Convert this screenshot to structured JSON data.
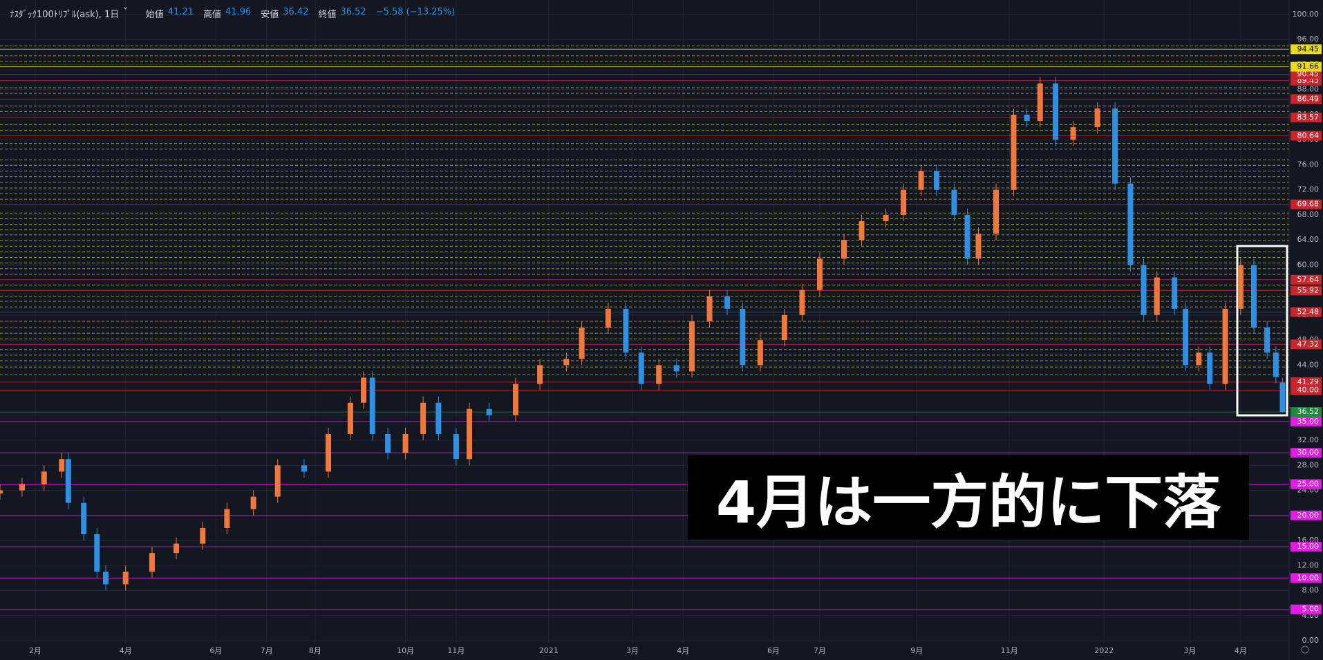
{
  "chart_data": {
    "type": "candlestick",
    "symbol": "ﾅｽﾀﾞｯｸ100ﾄﾘﾌﾟﾙ(ask), 1日",
    "open_label": "始値",
    "high_label": "高値",
    "low_label": "安値",
    "close_label": "終値",
    "change": "−5.58 (−13.25%)",
    "annotation": "4月は一方的に下落",
    "up_color": "#f0783c",
    "down_color": "#2f8fe0",
    "x": [
      0,
      10,
      20,
      28,
      31,
      38,
      44,
      48,
      57,
      69,
      80,
      92,
      103,
      115,
      126,
      138,
      149,
      159,
      165,
      169,
      176,
      184,
      192,
      199,
      207,
      213,
      222,
      234,
      245,
      257,
      264,
      276,
      284,
      291,
      299,
      307,
      314,
      322,
      330,
      337,
      345,
      356,
      364,
      372,
      383,
      391,
      402,
      410,
      418,
      425,
      433,
      439,
      444,
      452,
      460,
      466,
      472,
      479,
      487,
      498,
      506,
      513,
      519,
      525,
      533,
      538,
      544,
      549,
      556,
      563,
      569,
      575,
      579,
      582
    ],
    "open": [
      23.5,
      24,
      25,
      27,
      29,
      22,
      17,
      11,
      9,
      11,
      14,
      15.5,
      18,
      21,
      23,
      28,
      27,
      33,
      38,
      42,
      33,
      30,
      33,
      38,
      33,
      29,
      37,
      36,
      41,
      44,
      45,
      50,
      53,
      46,
      41,
      44,
      43,
      51,
      55,
      53,
      44,
      48,
      52,
      56,
      61,
      64,
      67,
      68,
      72,
      75,
      72,
      68,
      61,
      65,
      72,
      84,
      83,
      89,
      80,
      82,
      85,
      73,
      60,
      52,
      58,
      53,
      44,
      46,
      41,
      53,
      60,
      50,
      46,
      41.21
    ],
    "high": [
      25,
      26,
      28,
      30,
      30,
      23,
      18,
      12,
      12,
      15,
      16.5,
      19,
      22,
      24,
      29,
      29,
      34,
      39,
      43,
      43,
      34,
      34,
      39,
      39,
      34,
      38,
      38,
      42,
      45,
      46,
      51,
      54,
      54,
      47,
      45,
      45,
      52,
      56,
      56,
      54,
      49,
      53,
      57,
      62,
      65,
      68,
      69,
      73,
      76,
      76,
      73,
      69,
      66,
      73,
      85,
      85,
      90,
      90,
      83,
      86,
      86,
      74,
      61,
      59,
      59,
      54,
      47,
      47,
      54,
      61,
      61,
      51,
      47,
      41.96
    ],
    "low": [
      22.5,
      23,
      24,
      26,
      21,
      16,
      10,
      8,
      8,
      10,
      13,
      14.5,
      17,
      20,
      22,
      26,
      26,
      32,
      37,
      32,
      29,
      29,
      32,
      32,
      28,
      28,
      35,
      35,
      40,
      43,
      44,
      49,
      45,
      40,
      40,
      42,
      42,
      50,
      52,
      43,
      43,
      47,
      51,
      55,
      60,
      63,
      66,
      67,
      71,
      71,
      67,
      60,
      60,
      64,
      71,
      82,
      82,
      79,
      79,
      81,
      72,
      59,
      51,
      51,
      52,
      43,
      43,
      40,
      40,
      52,
      49,
      45,
      41.1,
      36.42
    ],
    "close": [
      24,
      25,
      27,
      29,
      22,
      17,
      11,
      9,
      11,
      14,
      15.5,
      18,
      21,
      23,
      28,
      27,
      33,
      38,
      42,
      33,
      30,
      33,
      38,
      33,
      29,
      37,
      36,
      41,
      44,
      45,
      50,
      53,
      46,
      41,
      44,
      43,
      51,
      55,
      53,
      44,
      48,
      52,
      56,
      61,
      64,
      67,
      68,
      72,
      75,
      72,
      68,
      61,
      65,
      72,
      84,
      83,
      89,
      80,
      82,
      85,
      73,
      60,
      52,
      58,
      53,
      44,
      46,
      41,
      53,
      60,
      50,
      46,
      42.1,
      36.52
    ],
    "xlim": [
      0,
      585
    ],
    "xticks": [
      {
        "value": 16,
        "label": "2月"
      },
      {
        "value": 57,
        "label": "4月"
      },
      {
        "value": 98,
        "label": "6月"
      },
      {
        "value": 121,
        "label": "7月"
      },
      {
        "value": 143,
        "label": "8月"
      },
      {
        "value": 184,
        "label": "10月"
      },
      {
        "value": 207,
        "label": "11月"
      },
      {
        "value": 249,
        "label": "2021"
      },
      {
        "value": 287,
        "label": "3月"
      },
      {
        "value": 310,
        "label": "4月"
      },
      {
        "value": 351,
        "label": "6月"
      },
      {
        "value": 372,
        "label": "7月"
      },
      {
        "value": 416,
        "label": "9月"
      },
      {
        "value": 458,
        "label": "11月"
      },
      {
        "value": 501,
        "label": "2022"
      },
      {
        "value": 540,
        "label": "3月"
      },
      {
        "value": 563,
        "label": "4月"
      }
    ],
    "ylim": [
      0,
      100
    ],
    "yticks": [
      {
        "value": 0,
        "label": "0.00"
      },
      {
        "value": 4,
        "label": "4.00"
      },
      {
        "value": 8,
        "label": "8.00"
      },
      {
        "value": 12,
        "label": "12.00"
      },
      {
        "value": 16,
        "label": "16.00"
      },
      {
        "value": 20,
        "label": "20.00"
      },
      {
        "value": 24,
        "label": "24.00"
      },
      {
        "value": 28,
        "label": "28.00"
      },
      {
        "value": 32,
        "label": "32.00"
      },
      {
        "value": 36,
        "label": "36.00"
      },
      {
        "value": 40,
        "label": "40.00"
      },
      {
        "value": 44,
        "label": "44.00"
      },
      {
        "value": 48,
        "label": "48.00"
      },
      {
        "value": 52,
        "label": "52.00"
      },
      {
        "value": 56,
        "label": "56.00"
      },
      {
        "value": 60,
        "label": "60.00"
      },
      {
        "value": 64,
        "label": "64.00"
      },
      {
        "value": 68,
        "label": "68.00"
      },
      {
        "value": 72,
        "label": "72.00"
      },
      {
        "value": 76,
        "label": "76.00"
      },
      {
        "value": 80,
        "label": "80.00"
      },
      {
        "value": 84,
        "label": "84.00"
      },
      {
        "value": 88,
        "label": "88.00"
      },
      {
        "value": 92,
        "label": "92.00"
      },
      {
        "value": 96,
        "label": "96.00"
      },
      {
        "value": 100,
        "label": "100.00"
      }
    ],
    "grid": true,
    "dashed_levels": [
      42.5,
      43.7,
      44.7,
      45.6,
      46.5,
      48.2,
      49.1,
      50.0,
      51.0,
      53.3,
      54.2,
      55.0,
      56.8,
      58.5,
      59.4,
      60.3,
      61.2,
      62.1,
      63.0,
      63.9,
      64.8,
      65.6,
      66.5,
      67.4,
      68.3,
      70.5,
      71.4,
      72.3,
      73.2,
      74.1,
      75.0,
      75.9,
      76.8,
      78.5,
      79.4,
      81.5,
      82.4,
      84.5,
      85.4,
      87.4,
      88.3,
      92.5,
      93.4,
      95.0
    ],
    "dashed_color": "#c9b52a",
    "levels": [
      {
        "value": 5,
        "label": "5.00",
        "color": "#e31ce3"
      },
      {
        "value": 10,
        "label": "10.00",
        "color": "#e31ce3"
      },
      {
        "value": 15,
        "label": "15.00",
        "color": "#e31ce3"
      },
      {
        "value": 20,
        "label": "20.00",
        "color": "#e31ce3"
      },
      {
        "value": 25,
        "label": "25.00",
        "color": "#e31ce3"
      },
      {
        "value": 30,
        "label": "30.00",
        "color": "#e31ce3"
      },
      {
        "value": 35,
        "label": "35.00",
        "color": "#e31ce3"
      },
      {
        "value": 36.52,
        "color": "#1f8a3c"
      },
      {
        "value": 40,
        "label": "40.00",
        "color": "#c8262c"
      },
      {
        "value": 41.29,
        "color": "#c8262c"
      },
      {
        "value": 47.32,
        "color": "#c8262c"
      },
      {
        "value": 52.48,
        "color": "#c8262c"
      },
      {
        "value": 55.92,
        "color": "#c8262c"
      },
      {
        "value": 57.64,
        "color": "#c8262c"
      },
      {
        "value": 69.68,
        "color": "#c8262c"
      },
      {
        "value": 80.64,
        "color": "#c8262c"
      },
      {
        "value": 83.57,
        "color": "#c8262c"
      },
      {
        "value": 86.49,
        "color": "#c8262c"
      },
      {
        "value": 89.43,
        "color": "#c8262c"
      },
      {
        "value": 90.45,
        "color": "#c8262c"
      },
      {
        "value": 91.66,
        "color": "#e8dc0c"
      },
      {
        "value": 94.45,
        "color": "#e8dc0c"
      }
    ]
  }
}
